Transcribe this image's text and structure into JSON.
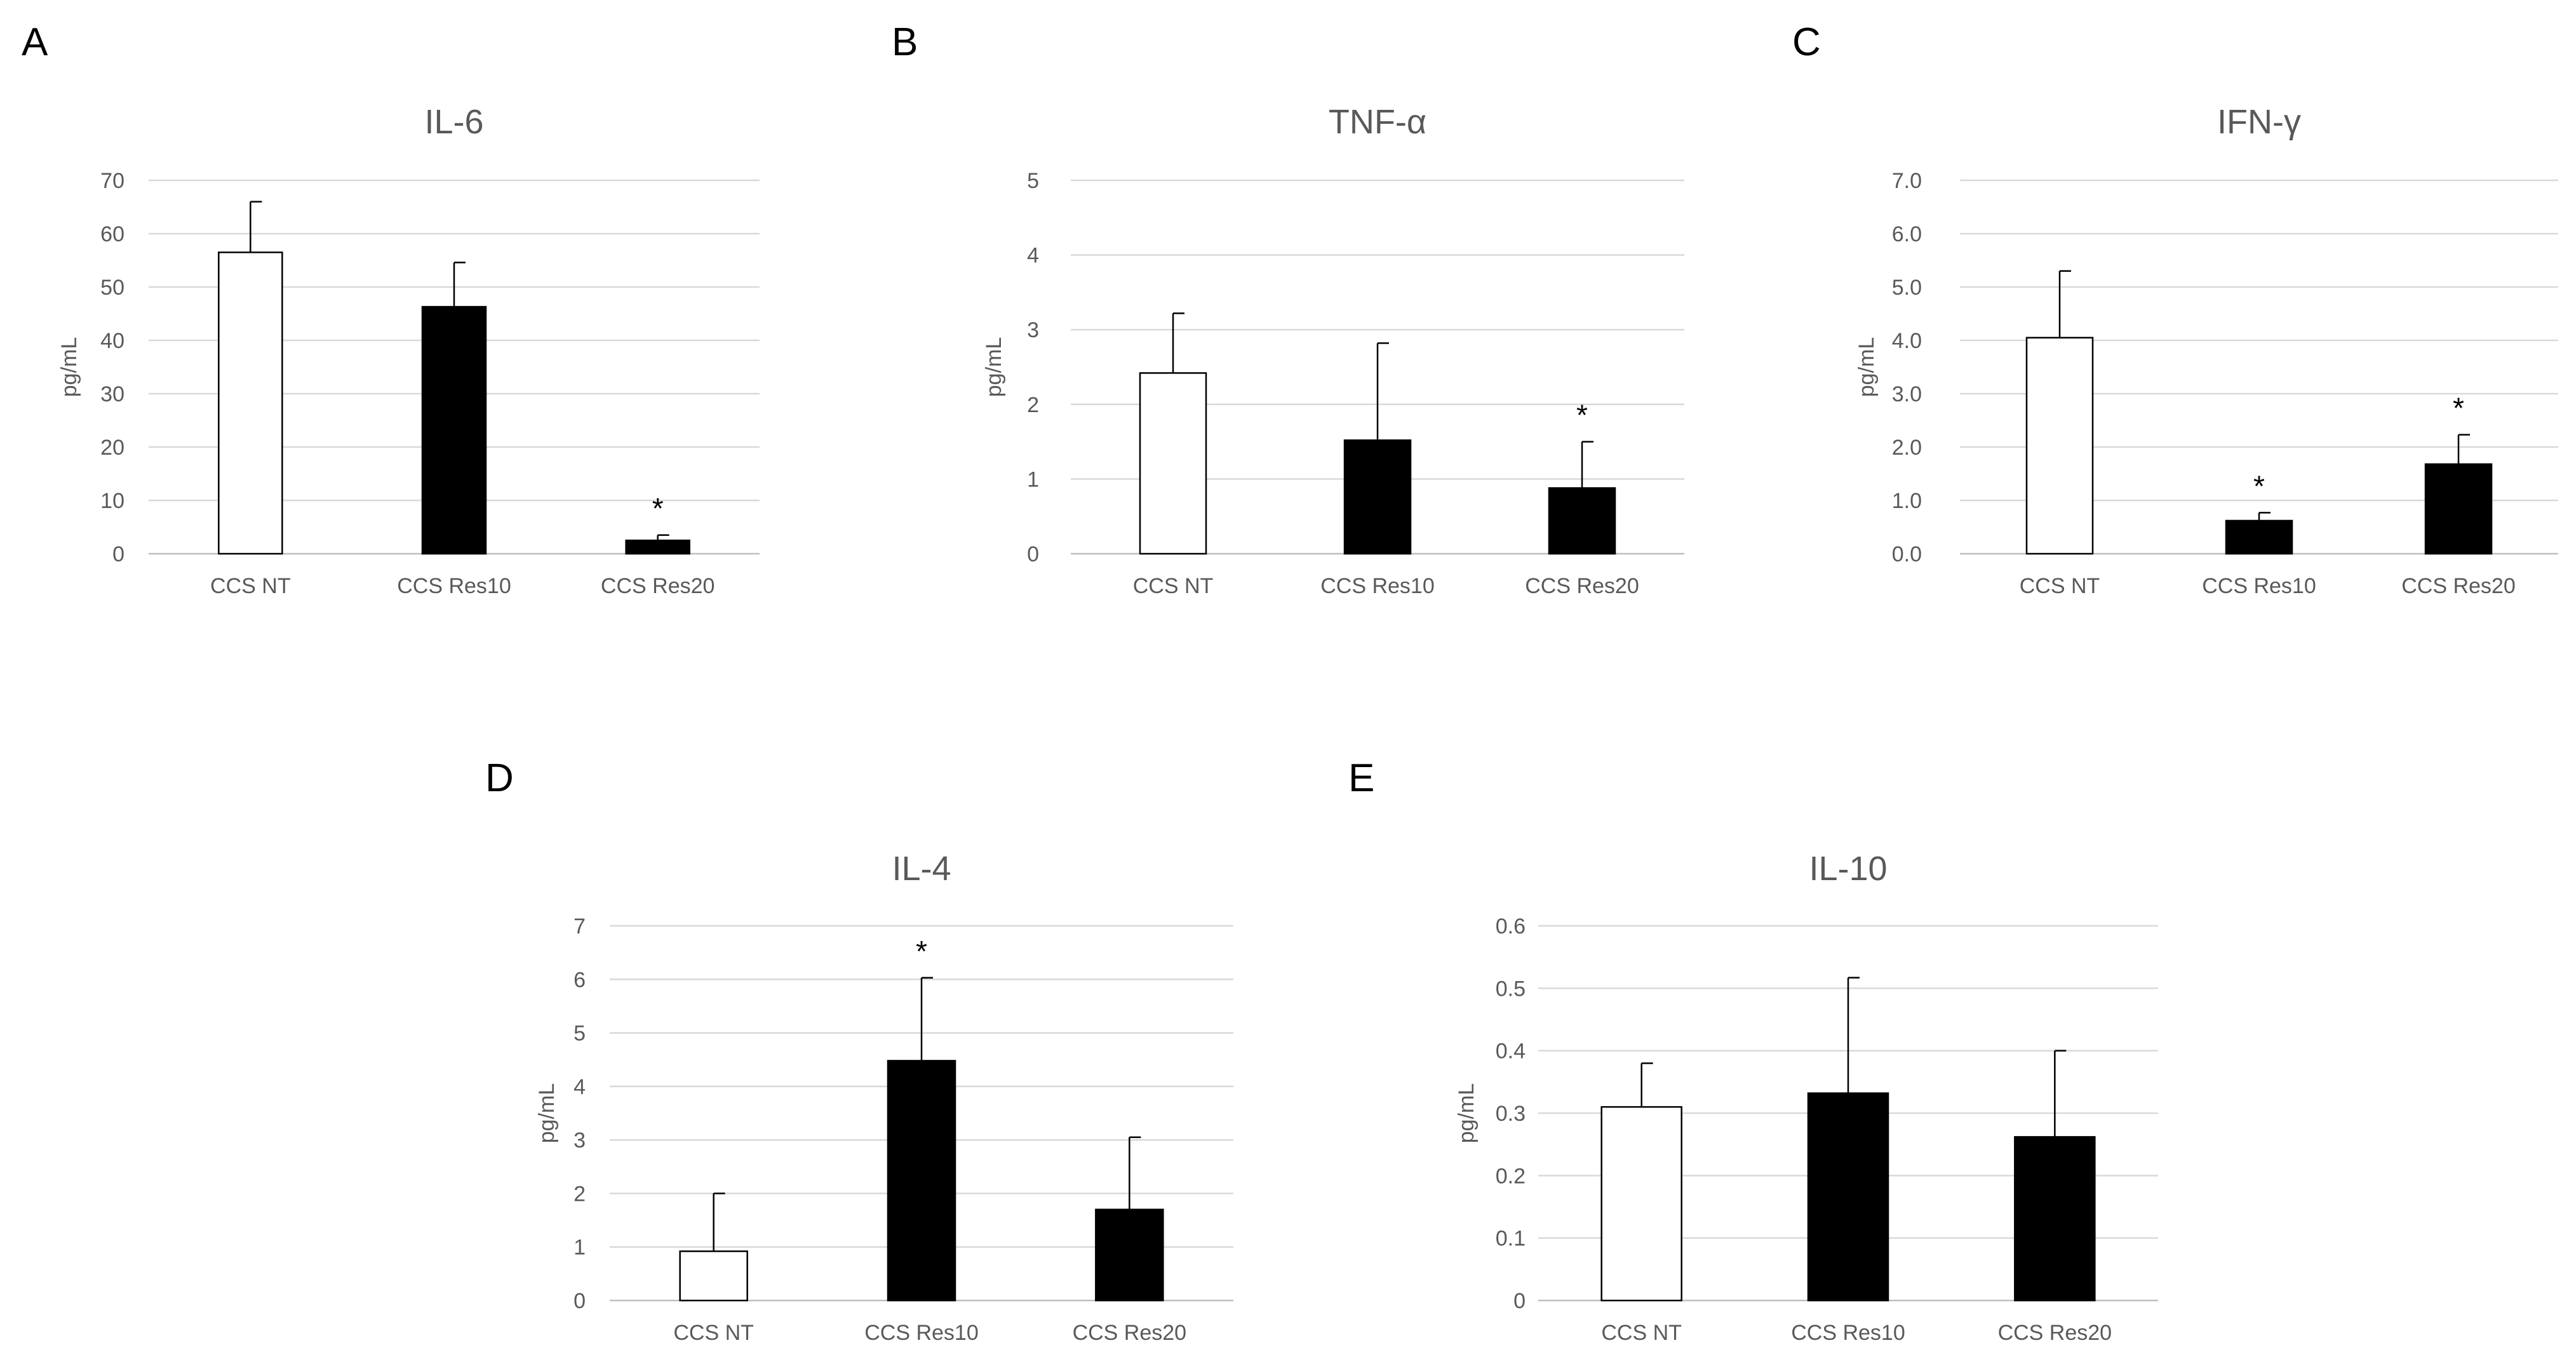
{
  "chart_data": [
    {
      "id": "A",
      "panel_label": "A",
      "type": "bar",
      "title": "IL-6",
      "xlabel": "",
      "ylabel": "pg/mL",
      "ylim": [
        0,
        70
      ],
      "yticks": [
        0,
        10,
        20,
        30,
        40,
        50,
        60,
        70
      ],
      "ytick_labels": [
        "0",
        "10",
        "20",
        "30",
        "40",
        "50",
        "60",
        "70"
      ],
      "categories": [
        "CCS NT",
        "CCS Res10",
        "CCS Res20"
      ],
      "values": [
        56.5,
        46.3,
        2.5
      ],
      "errors": [
        9.5,
        8.3,
        1.0
      ],
      "fill_colors": [
        "#ffffff",
        "#000000",
        "#000000"
      ],
      "significance": [
        "",
        "",
        "*"
      ],
      "grid": true
    },
    {
      "id": "B",
      "panel_label": "B",
      "type": "bar",
      "title": "TNF-α",
      "xlabel": "",
      "ylabel": "pg/mL",
      "ylim": [
        0,
        5
      ],
      "yticks": [
        0,
        1,
        2,
        3,
        4,
        5
      ],
      "ytick_labels": [
        "0",
        "1",
        "2",
        "3",
        "4",
        "5"
      ],
      "categories": [
        "CCS NT",
        "CCS Res10",
        "CCS Res20"
      ],
      "values": [
        2.42,
        1.52,
        0.88
      ],
      "errors": [
        0.8,
        1.3,
        0.62
      ],
      "fill_colors": [
        "#ffffff",
        "#000000",
        "#000000"
      ],
      "significance": [
        "",
        "",
        "*"
      ],
      "grid": true
    },
    {
      "id": "C",
      "panel_label": "C",
      "type": "bar",
      "title": "IFN-γ",
      "xlabel": "",
      "ylabel": "pg/mL",
      "ylim": [
        0,
        7
      ],
      "yticks": [
        0,
        1,
        2,
        3,
        4,
        5,
        6,
        7
      ],
      "ytick_labels": [
        "0.0",
        "1.0",
        "2.0",
        "3.0",
        "4.0",
        "5.0",
        "6.0",
        "7.0"
      ],
      "categories": [
        "CCS NT",
        "CCS Res10",
        "CCS Res20"
      ],
      "values": [
        4.05,
        0.62,
        1.68
      ],
      "errors": [
        1.25,
        0.15,
        0.55
      ],
      "fill_colors": [
        "#ffffff",
        "#000000",
        "#000000"
      ],
      "significance": [
        "",
        "*",
        "*"
      ],
      "grid": true
    },
    {
      "id": "D",
      "panel_label": "D",
      "type": "bar",
      "title": "IL-4",
      "xlabel": "",
      "ylabel": "pg/mL",
      "ylim": [
        0,
        7
      ],
      "yticks": [
        0,
        1,
        2,
        3,
        4,
        5,
        6,
        7
      ],
      "ytick_labels": [
        "0",
        "1",
        "2",
        "3",
        "4",
        "5",
        "6",
        "7"
      ],
      "categories": [
        "CCS NT",
        "CCS Res10",
        "CCS Res20"
      ],
      "values": [
        0.92,
        4.48,
        1.7
      ],
      "errors": [
        1.08,
        1.55,
        1.35
      ],
      "fill_colors": [
        "#ffffff",
        "#000000",
        "#000000"
      ],
      "significance": [
        "",
        "*",
        ""
      ],
      "grid": true
    },
    {
      "id": "E",
      "panel_label": "E",
      "type": "bar",
      "title": "IL-10",
      "xlabel": "",
      "ylabel": "pg/mL",
      "ylim": [
        0,
        0.6
      ],
      "yticks": [
        0,
        0.1,
        0.2,
        0.3,
        0.4,
        0.5,
        0.6
      ],
      "ytick_labels": [
        "0",
        "0.1",
        "0.2",
        "0.3",
        "0.4",
        "0.5",
        "0.6"
      ],
      "categories": [
        "CCS NT",
        "CCS Res10",
        "CCS Res20"
      ],
      "values": [
        0.31,
        0.332,
        0.262
      ],
      "errors": [
        0.07,
        0.185,
        0.138
      ],
      "fill_colors": [
        "#ffffff",
        "#000000",
        "#000000"
      ],
      "significance": [
        "",
        "",
        ""
      ],
      "grid": true
    }
  ]
}
